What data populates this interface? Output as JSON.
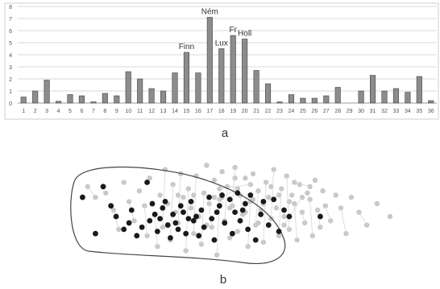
{
  "panels": {
    "a_label": "a",
    "b_label": "b"
  },
  "colors": {
    "bar": "#8c8c8c",
    "bar_stroke": "#444444",
    "grid": "#d9d9d9",
    "axis_text": "#555555",
    "annotation": "#333333",
    "scatter_light": "#c8c8c8",
    "scatter_dark": "#1a1a1a",
    "line": "#444444"
  },
  "chart_data": [
    {
      "type": "bar",
      "categories": [
        "1",
        "2",
        "3",
        "4",
        "5",
        "6",
        "7",
        "8",
        "9",
        "10",
        "11",
        "12",
        "13",
        "14",
        "15",
        "16",
        "17",
        "18",
        "19",
        "20",
        "21",
        "22",
        "23",
        "24",
        "25",
        "26",
        "27",
        "28",
        "29",
        "30",
        "31",
        "32",
        "33",
        "34",
        "35",
        "36"
      ],
      "values": [
        0.5,
        1.0,
        1.9,
        0.15,
        0.7,
        0.6,
        0.1,
        0.8,
        0.6,
        2.6,
        2.0,
        1.2,
        1.0,
        2.5,
        4.2,
        2.5,
        7.1,
        4.5,
        5.6,
        5.3,
        2.7,
        1.6,
        0.1,
        0.7,
        0.4,
        0.4,
        0.6,
        1.3,
        0.0,
        1.0,
        2.3,
        1.0,
        1.2,
        0.9,
        2.2,
        0.2
      ],
      "ylim": [
        0,
        8
      ],
      "yticks": [
        "0",
        "1",
        "2",
        "3",
        "4",
        "5",
        "6",
        "7",
        "8"
      ],
      "grid": true,
      "annotations": [
        {
          "category": "15",
          "text": "Finn"
        },
        {
          "category": "17",
          "text": "Ném"
        },
        {
          "category": "18",
          "text": "Lux"
        },
        {
          "category": "19",
          "text": "Fr"
        },
        {
          "category": "20",
          "text": "Holl"
        }
      ]
    },
    {
      "type": "scatter",
      "series": [
        {
          "points": [
            [
              -2.2,
              1.4
            ],
            [
              -1.9,
              0.9
            ],
            [
              -1.5,
              1.1
            ],
            [
              -1.2,
              0.3
            ],
            [
              -1.0,
              -0.6
            ],
            [
              -0.8,
              1.6
            ],
            [
              -0.6,
              0.7
            ],
            [
              -0.4,
              -0.2
            ],
            [
              -0.2,
              1.2
            ],
            [
              0.0,
              0.5
            ],
            [
              0.1,
              -0.9
            ],
            [
              0.2,
              1.8
            ],
            [
              0.4,
              0.1
            ],
            [
              0.5,
              -1.4
            ],
            [
              0.6,
              1.0
            ],
            [
              0.7,
              -0.5
            ],
            [
              0.8,
              2.2
            ],
            [
              0.9,
              0.6
            ],
            [
              1.0,
              -1.1
            ],
            [
              1.1,
              1.5
            ],
            [
              1.2,
              0.2
            ],
            [
              1.3,
              -0.3
            ],
            [
              1.4,
              2.0
            ],
            [
              1.5,
              0.9
            ],
            [
              1.6,
              -1.6
            ],
            [
              1.7,
              1.3
            ],
            [
              1.8,
              0.4
            ],
            [
              1.9,
              -0.8
            ],
            [
              2.0,
              1.9
            ],
            [
              2.1,
              0.0
            ],
            [
              2.2,
              -1.3
            ],
            [
              2.3,
              1.1
            ],
            [
              2.4,
              2.4
            ],
            [
              2.5,
              0.6
            ],
            [
              2.6,
              -0.5
            ],
            [
              2.7,
              1.7
            ],
            [
              2.8,
              -1.8
            ],
            [
              2.9,
              0.8
            ],
            [
              3.0,
              2.1
            ],
            [
              3.1,
              -0.2
            ],
            [
              3.2,
              1.4
            ],
            [
              3.3,
              -1.0
            ],
            [
              3.4,
              0.5
            ],
            [
              3.5,
              2.3
            ],
            [
              3.6,
              -0.7
            ],
            [
              3.7,
              1.0
            ],
            [
              3.8,
              0.1
            ],
            [
              3.9,
              1.8
            ],
            [
              4.0,
              -1.4
            ],
            [
              4.1,
              0.7
            ],
            [
              4.2,
              2.0
            ],
            [
              4.3,
              -0.4
            ],
            [
              4.4,
              1.2
            ],
            [
              4.5,
              0.3
            ],
            [
              4.6,
              -1.2
            ],
            [
              4.7,
              1.6
            ],
            [
              4.8,
              0.9
            ],
            [
              4.9,
              -0.1
            ],
            [
              5.0,
              2.2
            ],
            [
              5.1,
              0.4
            ],
            [
              5.2,
              -0.9
            ],
            [
              5.3,
              1.3
            ],
            [
              5.4,
              0.0
            ],
            [
              5.5,
              1.9
            ],
            [
              5.6,
              -0.6
            ],
            [
              5.7,
              1.0
            ],
            [
              5.8,
              0.6
            ],
            [
              5.9,
              -1.1
            ],
            [
              6.0,
              1.5
            ],
            [
              6.1,
              0.2
            ],
            [
              6.2,
              -0.3
            ],
            [
              6.3,
              1.1
            ],
            [
              6.4,
              0.8
            ],
            [
              6.5,
              -0.9
            ],
            [
              6.6,
              1.7
            ],
            [
              6.7,
              0.3
            ],
            [
              6.8,
              -0.5
            ],
            [
              6.9,
              1.2
            ],
            [
              7.0,
              0.5
            ],
            [
              7.2,
              -0.2
            ],
            [
              7.4,
              1.0
            ],
            [
              7.6,
              0.4
            ],
            [
              7.8,
              -0.8
            ],
            [
              8.0,
              0.9
            ],
            [
              8.3,
              0.2
            ],
            [
              8.6,
              -0.4
            ],
            [
              9.0,
              0.6
            ],
            [
              9.5,
              0.0
            ],
            [
              1.3,
              1.0
            ],
            [
              2.2,
              0.3
            ],
            [
              3.0,
              0.9
            ],
            [
              3.6,
              1.3
            ],
            [
              4.2,
              0.8
            ],
            [
              4.6,
              0.6
            ],
            [
              5.2,
              1.0
            ],
            [
              5.6,
              0.7
            ],
            [
              3.3,
              0.4
            ],
            [
              2.7,
              0.9
            ],
            [
              4.9,
              1.4
            ],
            [
              5.8,
              1.6
            ],
            [
              6.4,
              1.4
            ],
            [
              3.9,
              0.2
            ],
            [
              4.4,
              -0.3
            ],
            [
              2.4,
              -0.4
            ],
            [
              1.9,
              1.0
            ],
            [
              5.4,
              -0.4
            ],
            [
              6.1,
              0.9
            ],
            [
              3.5,
              1.8
            ],
            [
              2.9,
              1.3
            ],
            [
              4.1,
              1.5
            ]
          ]
        },
        {
          "points": [
            [
              -2.4,
              0.9
            ],
            [
              -1.9,
              -0.8
            ],
            [
              -1.6,
              1.4
            ],
            [
              -1.3,
              0.5
            ],
            [
              -1.1,
              0.0
            ],
            [
              -0.8,
              -0.6
            ],
            [
              -0.6,
              -0.3
            ],
            [
              -0.5,
              0.3
            ],
            [
              -0.3,
              -0.9
            ],
            [
              -0.1,
              -0.5
            ],
            [
              0.1,
              1.6
            ],
            [
              0.2,
              -0.2
            ],
            [
              0.3,
              0.6
            ],
            [
              0.5,
              -0.7
            ],
            [
              0.6,
              -0.1
            ],
            [
              0.7,
              0.4
            ],
            [
              0.9,
              -0.4
            ],
            [
              1.0,
              -1.0
            ],
            [
              1.1,
              0.1
            ],
            [
              1.2,
              -0.3
            ],
            [
              1.3,
              -0.6
            ],
            [
              1.5,
              0.2
            ],
            [
              1.6,
              -0.8
            ],
            [
              1.8,
              0.7
            ],
            [
              1.9,
              -0.2
            ],
            [
              2.1,
              -0.9
            ],
            [
              2.2,
              0.3
            ],
            [
              2.3,
              -0.5
            ],
            [
              2.5,
              0.9
            ],
            [
              2.6,
              -0.1
            ],
            [
              2.7,
              -1.1
            ],
            [
              2.9,
              0.5
            ],
            [
              3.0,
              1.0
            ],
            [
              3.1,
              -0.3
            ],
            [
              3.3,
              0.8
            ],
            [
              3.4,
              -0.8
            ],
            [
              3.5,
              0.2
            ],
            [
              3.6,
              1.1
            ],
            [
              3.7,
              -0.2
            ],
            [
              3.9,
              0.6
            ],
            [
              4.0,
              -0.6
            ],
            [
              4.1,
              1.0
            ],
            [
              4.3,
              -1.1
            ],
            [
              4.5,
              0.1
            ],
            [
              4.6,
              0.7
            ],
            [
              4.8,
              -0.4
            ],
            [
              5.0,
              0.8
            ],
            [
              5.2,
              -0.7
            ],
            [
              5.4,
              0.3
            ],
            [
              5.6,
              0.0
            ],
            [
              0.4,
              0.1
            ],
            [
              1.4,
              0.5
            ],
            [
              2.0,
              0.0
            ],
            [
              2.8,
              0.2
            ],
            [
              3.8,
              0.3
            ],
            [
              0.8,
              0.7
            ],
            [
              1.7,
              -0.1
            ],
            [
              6.8,
              0.0
            ]
          ]
        }
      ]
    }
  ]
}
